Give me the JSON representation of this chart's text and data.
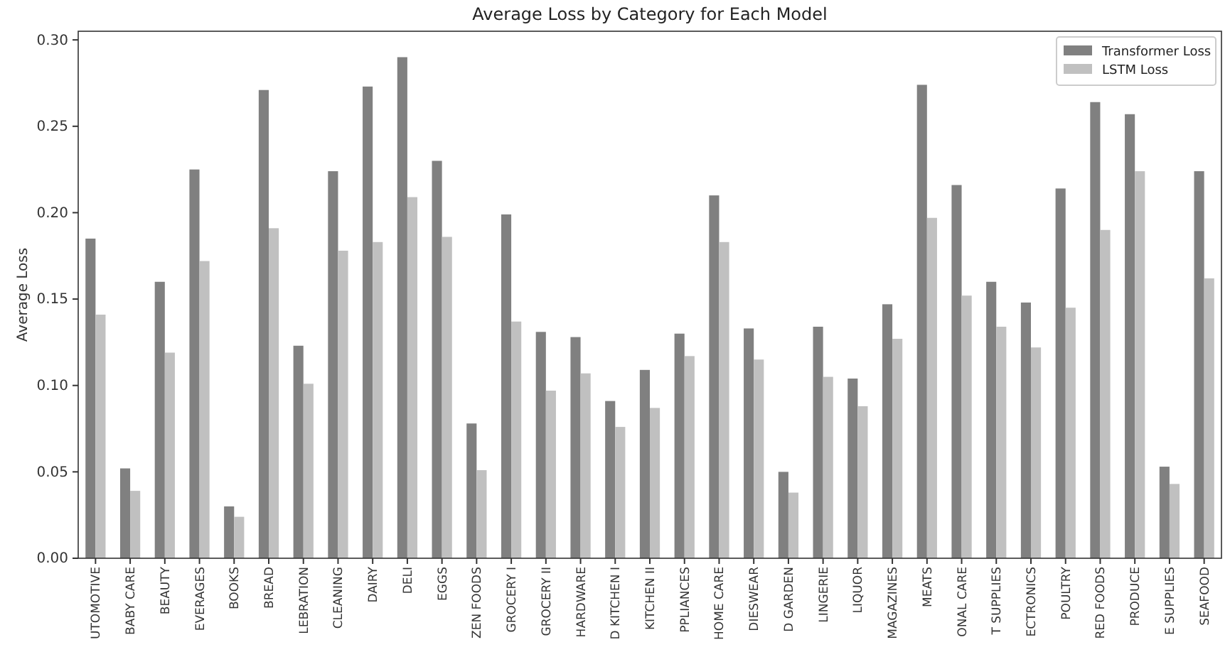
{
  "chart_data": {
    "type": "bar",
    "title": "Average Loss by Category for Each Model",
    "ylabel": "Average Loss",
    "categories": [
      "UTOMOTIVE",
      "BABY CARE",
      "BEAUTY",
      "EVERAGES",
      "BOOKS",
      "BREAD",
      "LEBRATION",
      "CLEANING",
      "DAIRY",
      "DELI",
      "EGGS",
      "ZEN FOODS",
      "GROCERY I",
      "GROCERY II",
      "HARDWARE",
      "D KITCHEN I",
      "KITCHEN II",
      "PPLIANCES",
      "HOME CARE",
      "DIESWEAR",
      "D GARDEN",
      "LINGERIE",
      "LIQUOR",
      "MAGAZINES",
      "MEATS",
      "ONAL CARE",
      "T SUPPLIES",
      "ECTRONICS",
      "POULTRY",
      "RED FOODS",
      "PRODUCE",
      "E SUPPLIES",
      "SEAFOOD"
    ],
    "series": [
      {
        "name": "Transformer Loss",
        "color": "#808080",
        "values": [
          0.185,
          0.052,
          0.16,
          0.225,
          0.03,
          0.271,
          0.123,
          0.224,
          0.273,
          0.29,
          0.23,
          0.078,
          0.199,
          0.131,
          0.128,
          0.091,
          0.109,
          0.13,
          0.21,
          0.133,
          0.05,
          0.134,
          0.104,
          0.147,
          0.274,
          0.216,
          0.16,
          0.148,
          0.214,
          0.264,
          0.257,
          0.053,
          0.224
        ]
      },
      {
        "name": "LSTM Loss",
        "color": "#c0c0c0",
        "values": [
          0.141,
          0.039,
          0.119,
          0.172,
          0.024,
          0.191,
          0.101,
          0.178,
          0.183,
          0.209,
          0.186,
          0.051,
          0.137,
          0.097,
          0.107,
          0.076,
          0.087,
          0.117,
          0.183,
          0.115,
          0.038,
          0.105,
          0.088,
          0.127,
          0.197,
          0.152,
          0.134,
          0.122,
          0.145,
          0.19,
          0.224,
          0.043,
          0.162
        ]
      }
    ],
    "ylim": [
      0,
      0.305
    ],
    "yticks": [
      {
        "value": 0,
        "label": "0.00"
      },
      {
        "value": 0.05,
        "label": "0.05"
      },
      {
        "value": 0.1,
        "label": "0.10"
      },
      {
        "value": 0.15,
        "label": "0.15"
      },
      {
        "value": 0.2,
        "label": "0.20"
      },
      {
        "value": 0.25,
        "label": "0.25"
      },
      {
        "value": 0.3,
        "label": "0.30"
      }
    ],
    "legend": "top right",
    "grid": false
  }
}
